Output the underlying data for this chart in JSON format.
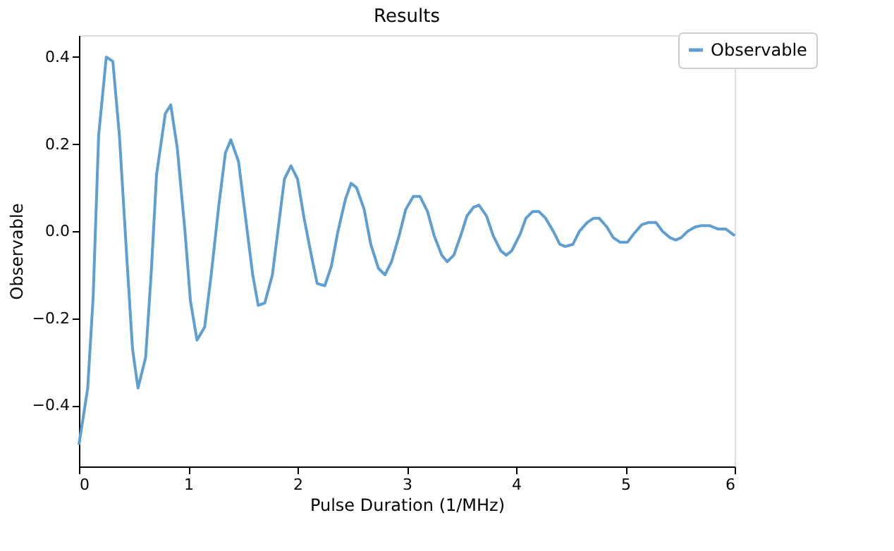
{
  "chart_data": {
    "type": "line",
    "title": "Results",
    "xlabel": "Pulse Duration (1/MHz)",
    "ylabel": "Observable",
    "x": [
      0,
      0.08,
      0.13,
      0.18,
      0.25,
      0.31,
      0.37,
      0.44,
      0.49,
      0.54,
      0.61,
      0.66,
      0.71,
      0.79,
      0.84,
      0.9,
      0.97,
      1.02,
      1.08,
      1.15,
      1.21,
      1.28,
      1.34,
      1.39,
      1.46,
      1.52,
      1.59,
      1.64,
      1.7,
      1.77,
      1.83,
      1.88,
      1.94,
      2.0,
      2.06,
      2.13,
      2.18,
      2.25,
      2.31,
      2.37,
      2.44,
      2.49,
      2.54,
      2.61,
      2.67,
      2.74,
      2.8,
      2.86,
      2.93,
      2.99,
      3.06,
      3.12,
      3.19,
      3.25,
      3.32,
      3.37,
      3.43,
      3.5,
      3.55,
      3.61,
      3.66,
      3.73,
      3.79,
      3.86,
      3.91,
      3.96,
      4.04,
      4.09,
      4.15,
      4.21,
      4.27,
      4.34,
      4.4,
      4.45,
      4.52,
      4.58,
      4.65,
      4.71,
      4.76,
      4.83,
      4.89,
      4.95,
      5.02,
      5.08,
      5.15,
      5.21,
      5.28,
      5.34,
      5.41,
      5.46,
      5.51,
      5.57,
      5.64,
      5.7,
      5.77,
      5.85,
      5.92,
      6.0
    ],
    "series": [
      {
        "name": "Observable",
        "color": "#5f9ed1",
        "values": [
          -0.49,
          -0.36,
          -0.15,
          0.22,
          0.4,
          0.39,
          0.22,
          -0.07,
          -0.27,
          -0.36,
          -0.29,
          -0.1,
          0.13,
          0.27,
          0.29,
          0.19,
          0.0,
          -0.16,
          -0.25,
          -0.22,
          -0.1,
          0.06,
          0.18,
          0.21,
          0.16,
          0.04,
          -0.1,
          -0.17,
          -0.165,
          -0.1,
          0.02,
          0.12,
          0.15,
          0.12,
          0.03,
          -0.06,
          -0.12,
          -0.125,
          -0.08,
          0.0,
          0.075,
          0.11,
          0.1,
          0.05,
          -0.03,
          -0.085,
          -0.1,
          -0.07,
          -0.01,
          0.05,
          0.08,
          0.08,
          0.045,
          -0.01,
          -0.055,
          -0.07,
          -0.055,
          -0.005,
          0.035,
          0.055,
          0.06,
          0.035,
          -0.01,
          -0.045,
          -0.055,
          -0.045,
          -0.005,
          0.03,
          0.045,
          0.045,
          0.03,
          0.0,
          -0.03,
          -0.035,
          -0.03,
          0.0,
          0.02,
          0.03,
          0.03,
          0.01,
          -0.015,
          -0.025,
          -0.025,
          -0.005,
          0.015,
          0.02,
          0.02,
          0.0,
          -0.015,
          -0.02,
          -0.015,
          0.0,
          0.01,
          0.013,
          0.013,
          0.005,
          0.005,
          -0.01
        ]
      }
    ],
    "xlim": [
      0,
      6
    ],
    "xticks": [
      0,
      1,
      2,
      3,
      4,
      5,
      6
    ],
    "ylim": [
      -0.54,
      0.45
    ],
    "yticks": [
      {
        "value": -0.4,
        "label": "−0.4"
      },
      {
        "value": -0.2,
        "label": "−0.2"
      },
      {
        "value": 0,
        "label": "0.0"
      },
      0.2,
      0.4
    ],
    "grid": false,
    "legend": "top right",
    "marker": "none",
    "line_style": "solid"
  }
}
